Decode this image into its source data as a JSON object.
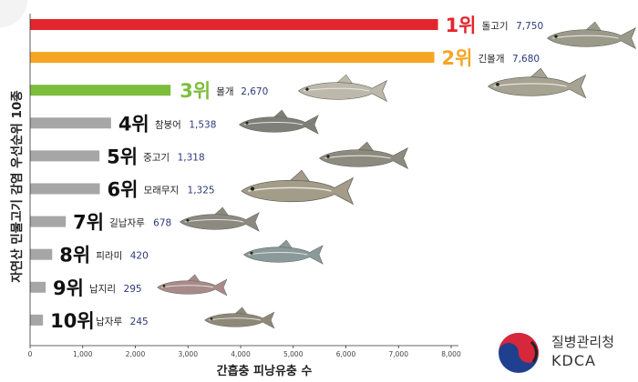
{
  "chart_data": {
    "type": "bar",
    "orientation": "horizontal",
    "ylabel": "자연산 민물고기 감염 우선순위 10종",
    "xlabel": "간흡충 피낭유충 수",
    "xlim": [
      0,
      8000
    ],
    "xticks": [
      "0",
      "1,000",
      "2,000",
      "3,000",
      "4,000",
      "5,000",
      "6,000",
      "7,000",
      "8,000"
    ],
    "grid": false,
    "legend": "none",
    "bars": [
      {
        "rank": "1위",
        "name": "돌고기",
        "value": 7750,
        "value_label": "7,750",
        "color": "#e3262d"
      },
      {
        "rank": "2위",
        "name": "긴몰개",
        "value": 7680,
        "value_label": "7,680",
        "color": "#f5a623"
      },
      {
        "rank": "3위",
        "name": "몰개",
        "value": 2670,
        "value_label": "2,670",
        "color": "#7dbd3d"
      },
      {
        "rank": "4위",
        "name": "참붕어",
        "value": 1538,
        "value_label": "1,538",
        "color": "#a6a6a6"
      },
      {
        "rank": "5위",
        "name": "중고기",
        "value": 1318,
        "value_label": "1,318",
        "color": "#a6a6a6"
      },
      {
        "rank": "6위",
        "name": "모래무지",
        "value": 1325,
        "value_label": "1,325",
        "color": "#a6a6a6"
      },
      {
        "rank": "7위",
        "name": "길납자루",
        "value": 678,
        "value_label": "678",
        "color": "#a6a6a6"
      },
      {
        "rank": "8위",
        "name": "피라미",
        "value": 420,
        "value_label": "420",
        "color": "#a6a6a6"
      },
      {
        "rank": "9위",
        "name": "납지리",
        "value": 295,
        "value_label": "295",
        "color": "#a6a6a6"
      },
      {
        "rank": "10위",
        "name": "납자루",
        "value": 245,
        "value_label": "245",
        "color": "#a6a6a6"
      }
    ],
    "rank_color_top": "#e3262d",
    "rank_color_second": "#f5a623",
    "rank_color_third": "#7dbd3d",
    "rank_color_rest": "#111111",
    "value_label_color": "#2d3a7a"
  },
  "logo": {
    "text_ko": "질병관리청",
    "text_en": "KDCA",
    "red": "#d6283a",
    "blue": "#1f3f8f",
    "black": "#222222"
  }
}
